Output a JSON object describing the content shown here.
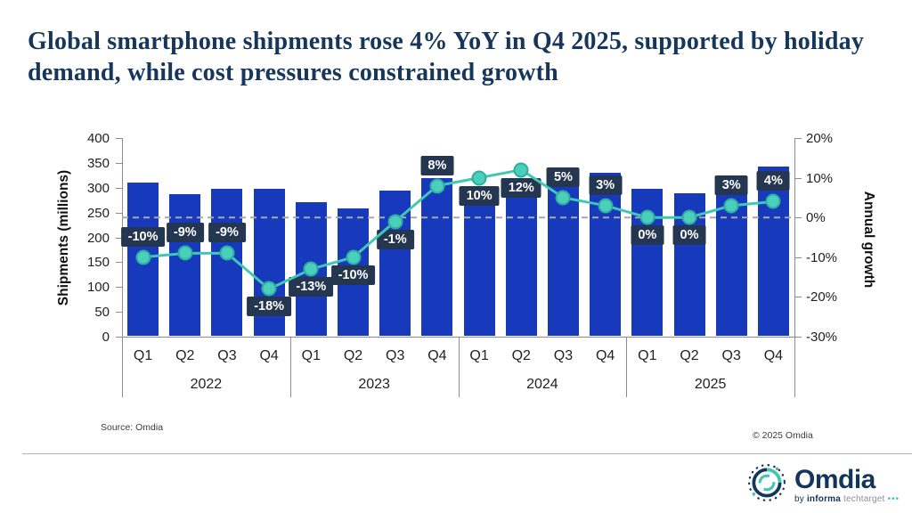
{
  "title": "Global smartphone shipments rose 4% YoY in Q4 2025, supported by holiday demand, while cost pressures constrained growth",
  "chart_data": {
    "type": "bar+line combo",
    "title": "Global smartphone shipments rose 4% YoY in Q4 2025, supported by holiday demand, while cost pressures constrained growth",
    "left_axis": {
      "label": "Shipments (millions)",
      "min": 0,
      "max": 400,
      "tick_step": 50,
      "ticks": [
        400,
        350,
        300,
        250,
        200,
        150,
        100,
        50,
        0
      ]
    },
    "right_axis": {
      "label": "Annual growth",
      "min": -30,
      "max": 20,
      "tick_step": 10,
      "ticks": [
        "20%",
        "10%",
        "0%",
        "-10%",
        "-20%",
        "-30%"
      ],
      "tick_values": [
        20,
        10,
        0,
        -10,
        -20,
        -30
      ]
    },
    "zero_line": {
      "growth_value": 0,
      "style": "dashed"
    },
    "legend": "none",
    "grid": "off",
    "years": [
      "2022",
      "2023",
      "2024",
      "2025"
    ],
    "quarter_labels": [
      "Q1",
      "Q2",
      "Q3",
      "Q4",
      "Q1",
      "Q2",
      "Q3",
      "Q4",
      "Q1",
      "Q2",
      "Q3",
      "Q4",
      "Q1",
      "Q2",
      "Q3",
      "Q4"
    ],
    "series": [
      {
        "name": "Shipments (millions)",
        "type": "bar",
        "values": [
          311,
          287,
          298,
          297,
          270,
          258,
          295,
          320,
          297,
          289,
          310,
          330,
          297,
          289,
          319,
          343
        ]
      },
      {
        "name": "Annual growth",
        "type": "line",
        "values": [
          -10,
          -9,
          -9,
          -18,
          -13,
          -10,
          -1,
          8,
          10,
          12,
          5,
          3,
          0,
          0,
          3,
          4
        ]
      }
    ],
    "quarters": [
      {
        "year": "2022",
        "q": "Q1",
        "shipments": 311,
        "growth": -10,
        "growth_label": "-10%",
        "label_pos": "above"
      },
      {
        "year": "2022",
        "q": "Q2",
        "shipments": 287,
        "growth": -9,
        "growth_label": "-9%",
        "label_pos": "above"
      },
      {
        "year": "2022",
        "q": "Q3",
        "shipments": 298,
        "growth": -9,
        "growth_label": "-9%",
        "label_pos": "above"
      },
      {
        "year": "2022",
        "q": "Q4",
        "shipments": 297,
        "growth": -18,
        "growth_label": "-18%",
        "label_pos": "below"
      },
      {
        "year": "2023",
        "q": "Q1",
        "shipments": 270,
        "growth": -13,
        "growth_label": "-13%",
        "label_pos": "below"
      },
      {
        "year": "2023",
        "q": "Q2",
        "shipments": 258,
        "growth": -10,
        "growth_label": "-10%",
        "label_pos": "below"
      },
      {
        "year": "2023",
        "q": "Q3",
        "shipments": 295,
        "growth": -1,
        "growth_label": "-1%",
        "label_pos": "below"
      },
      {
        "year": "2023",
        "q": "Q4",
        "shipments": 320,
        "growth": 8,
        "growth_label": "8%",
        "label_pos": "above"
      },
      {
        "year": "2024",
        "q": "Q1",
        "shipments": 297,
        "growth": 10,
        "growth_label": "10%",
        "label_pos": "below"
      },
      {
        "year": "2024",
        "q": "Q2",
        "shipments": 289,
        "growth": 12,
        "growth_label": "12%",
        "label_pos": "below"
      },
      {
        "year": "2024",
        "q": "Q3",
        "shipments": 310,
        "growth": 5,
        "growth_label": "5%",
        "label_pos": "above"
      },
      {
        "year": "2024",
        "q": "Q4",
        "shipments": 330,
        "growth": 3,
        "growth_label": "3%",
        "label_pos": "above"
      },
      {
        "year": "2025",
        "q": "Q1",
        "shipments": 297,
        "growth": 0,
        "growth_label": "0%",
        "label_pos": "below"
      },
      {
        "year": "2025",
        "q": "Q2",
        "shipments": 289,
        "growth": 0,
        "growth_label": "0%",
        "label_pos": "below"
      },
      {
        "year": "2025",
        "q": "Q3",
        "shipments": 319,
        "growth": 3,
        "growth_label": "3%",
        "label_pos": "above"
      },
      {
        "year": "2025",
        "q": "Q4",
        "shipments": 343,
        "growth": 4,
        "growth_label": "4%",
        "label_pos": "above"
      }
    ]
  },
  "colors": {
    "title_navy": "#16365c",
    "bar_blue": "#1739bc",
    "label_box_navy": "#253750",
    "line_teal": "#41c7b5",
    "dot_fill": "#49cfbc",
    "dot_border": "#2fad9d",
    "zero_line_gray": "#a8a8a8",
    "axis_gray": "#8c8c8c",
    "axis_text": "#1f1f1f"
  },
  "footer": {
    "source": "Source: Omdia",
    "copyright": "© 2025 Omdia"
  },
  "logo": {
    "brand": "Omdia",
    "tagline_by": "by",
    "tagline_informa": "informa",
    "tagline_techtarget": "techtarget",
    "tagline_dots": "•••"
  }
}
